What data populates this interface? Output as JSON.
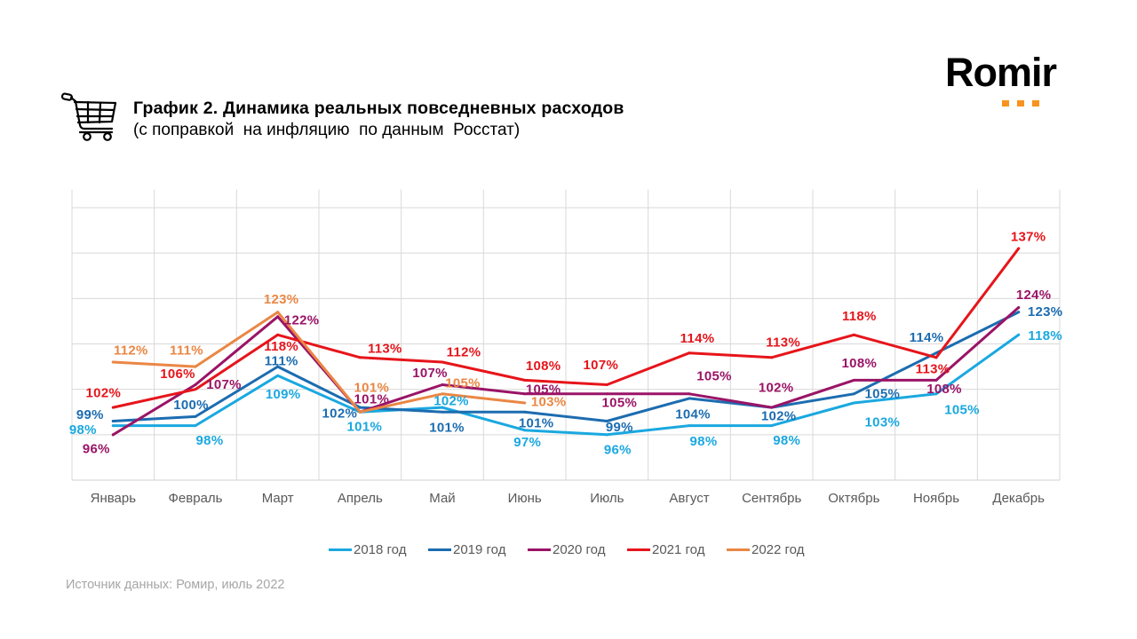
{
  "header": {
    "icon": "shopping-cart-icon",
    "title": "График 2. Динамика реальных повседневных расходов",
    "subtitle": "(с поправкой  на инфляцию  по данным  Росстат)"
  },
  "logo": {
    "text": "Romir",
    "accent_color": "#f7941d"
  },
  "source": "Источник данных: Ромир, июль 2022",
  "chart_data": {
    "type": "line",
    "title": "График 2. Динамика реальных повседневных расходов",
    "subtitle": "(с поправкой на инфляцию по данным Росстат)",
    "xlabel": "",
    "ylabel": "",
    "unit": "%",
    "categories": [
      "Январь",
      "Февраль",
      "Март",
      "Апрель",
      "Май",
      "Июнь",
      "Июль",
      "Август",
      "Сентябрь",
      "Октябрь",
      "Ноябрь",
      "Декабрь"
    ],
    "ylim": [
      86,
      150
    ],
    "y_gridlines": [
      96,
      106,
      116,
      126,
      136,
      146
    ],
    "y_tick_labels_visible": false,
    "grid": true,
    "legend": "bottom-center",
    "series": [
      {
        "name": "2018 год",
        "color": "#1aa8e0",
        "values": [
          98,
          98,
          109,
          101,
          102,
          97,
          96,
          98,
          98,
          103,
          105,
          118
        ],
        "labels": [
          "98%",
          "98%",
          "109%",
          "101%",
          "102%",
          "97%",
          "96%",
          "98%",
          "98%",
          "103%",
          "105%",
          "118%"
        ]
      },
      {
        "name": "2019 год",
        "color": "#1c6cb0",
        "values": [
          99,
          100,
          111,
          102,
          101,
          101,
          99,
          104,
          102,
          105,
          114,
          123
        ],
        "labels": [
          "99%",
          "100%",
          "111%",
          "102%",
          "101%",
          "101%",
          "99%",
          "104%",
          "102%",
          "105%",
          "114%",
          "123%"
        ]
      },
      {
        "name": "2020 год",
        "color": "#9a1466",
        "values": [
          96,
          107,
          122,
          101,
          107,
          105,
          105,
          105,
          102,
          108,
          108,
          124
        ],
        "labels": [
          "96%",
          "107%",
          "122%",
          "101%",
          "107%",
          "105%",
          "105%",
          "105%",
          "102%",
          "108%",
          "108%",
          "124%"
        ]
      },
      {
        "name": "2021 год",
        "color": "#e6151b",
        "values": [
          102,
          106,
          118,
          113,
          112,
          108,
          107,
          114,
          113,
          118,
          113,
          137
        ],
        "labels": [
          "102%",
          "106%",
          "118%",
          "113%",
          "112%",
          "108%",
          "107%",
          "114%",
          "113%",
          "118%",
          "113%",
          "137%"
        ]
      },
      {
        "name": "2022 год",
        "color": "#ea8744",
        "values": [
          112,
          111,
          123,
          101,
          105,
          103
        ],
        "labels": [
          "112%",
          "111%",
          "123%",
          "101%",
          "105%",
          "103%"
        ]
      }
    ]
  }
}
